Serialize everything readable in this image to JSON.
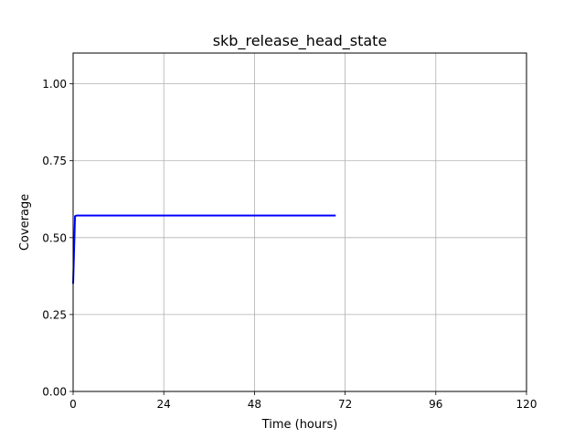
{
  "chart_data": {
    "type": "line",
    "title": "skb_release_head_state",
    "xlabel": "Time (hours)",
    "ylabel": "Coverage",
    "xlim": [
      0,
      120
    ],
    "ylim": [
      0,
      1.1
    ],
    "xticks": [
      0,
      24,
      48,
      72,
      96,
      120
    ],
    "xtick_labels": [
      "0",
      "24",
      "48",
      "72",
      "96",
      "120"
    ],
    "yticks": [
      0,
      0.25,
      0.5,
      0.75,
      1.0
    ],
    "ytick_labels": [
      "0.00",
      "0.25",
      "0.50",
      "0.75",
      "1.00"
    ],
    "grid": true,
    "legend": "none",
    "series": [
      {
        "color": "#0000ff",
        "x": [
          0,
          0.5,
          1,
          10,
          24,
          48,
          69.5
        ],
        "y": [
          0.35,
          0.57,
          0.572,
          0.572,
          0.572,
          0.572,
          0.572
        ]
      }
    ]
  }
}
